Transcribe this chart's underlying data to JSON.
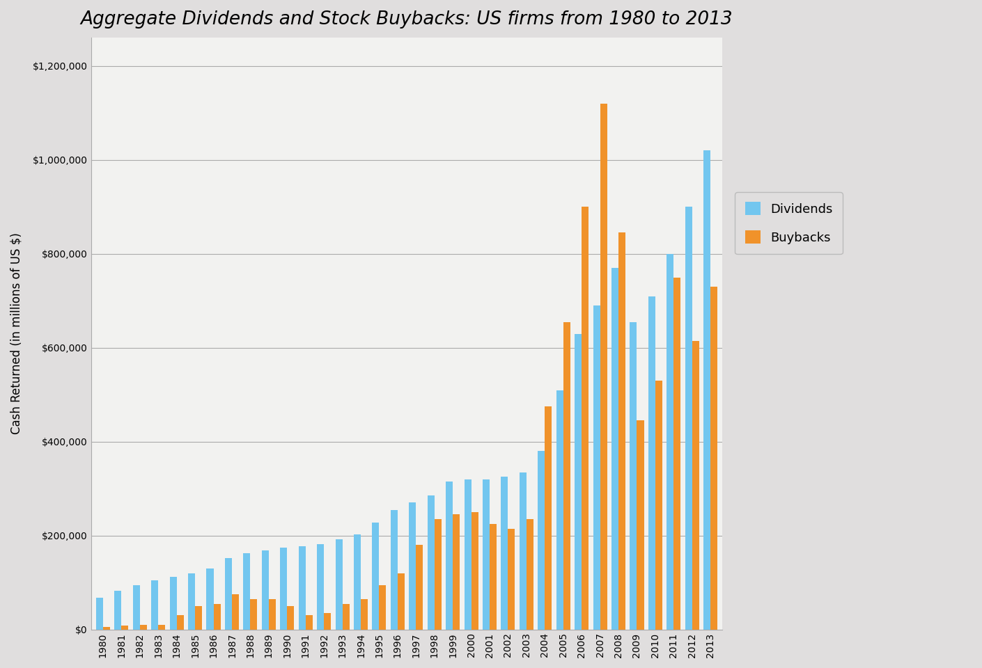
{
  "title": "Aggregate Dividends and Stock Buybacks: US firms from 1980 to 2013",
  "xlabel": "",
  "ylabel": "Cash Returned (in millions of US $)",
  "years": [
    1980,
    1981,
    1982,
    1983,
    1984,
    1985,
    1986,
    1987,
    1988,
    1989,
    1990,
    1991,
    1992,
    1993,
    1994,
    1995,
    1996,
    1997,
    1998,
    1999,
    2000,
    2001,
    2002,
    2003,
    2004,
    2005,
    2006,
    2007,
    2008,
    2009,
    2010,
    2011,
    2012,
    2013
  ],
  "dividends": [
    68000,
    82000,
    95000,
    105000,
    112000,
    120000,
    130000,
    152000,
    162000,
    168000,
    175000,
    178000,
    182000,
    192000,
    202000,
    228000,
    255000,
    270000,
    285000,
    315000,
    320000,
    320000,
    325000,
    335000,
    380000,
    510000,
    630000,
    690000,
    770000,
    655000,
    710000,
    800000,
    900000,
    1020000
  ],
  "buybacks": [
    5000,
    8000,
    10000,
    10000,
    30000,
    50000,
    55000,
    75000,
    65000,
    65000,
    50000,
    30000,
    35000,
    55000,
    65000,
    95000,
    120000,
    180000,
    235000,
    245000,
    250000,
    225000,
    215000,
    235000,
    475000,
    655000,
    900000,
    1120000,
    845000,
    445000,
    530000,
    750000,
    615000,
    730000
  ],
  "dividends_color": "#72C6EF",
  "buybacks_color": "#F0922A",
  "background_color": "#E0DEDE",
  "plot_background_color": "#F2F2F0",
  "ylim": [
    0,
    1260000
  ],
  "yticks": [
    0,
    200000,
    400000,
    600000,
    800000,
    1000000,
    1200000
  ],
  "grid_color": "#AAAAAA",
  "title_fontsize": 19,
  "axis_label_fontsize": 12,
  "tick_fontsize": 10,
  "legend_labels": [
    "Dividends",
    "Buybacks"
  ],
  "bar_width": 0.38
}
